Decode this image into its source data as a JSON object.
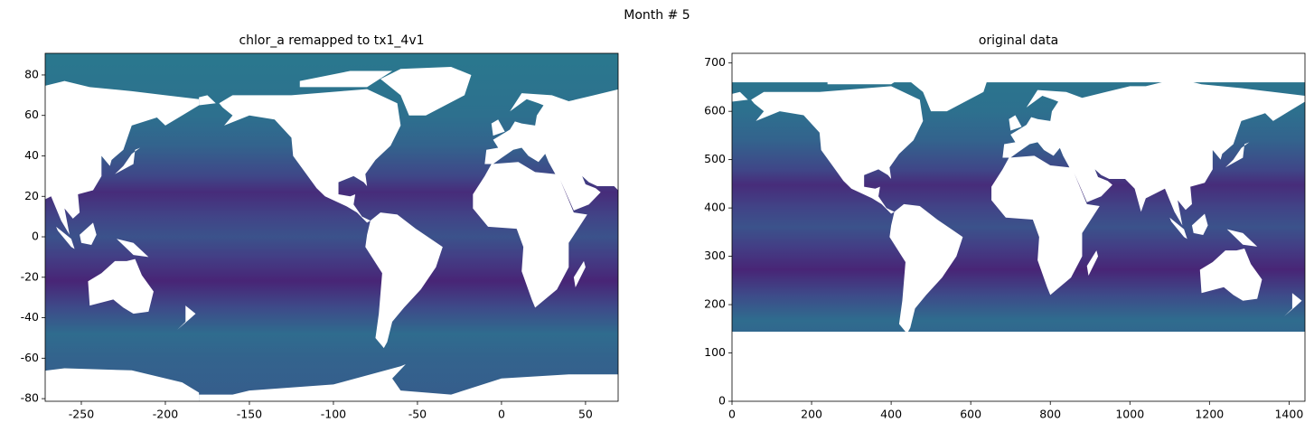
{
  "title": "Month # 5",
  "chart_data": [
    {
      "type": "heatmap",
      "title": "chlor_a remapped to tx1_4v1",
      "xlim": [
        -271.5,
        69.4
      ],
      "ylim": [
        -81.3,
        90.7
      ],
      "xticks": [
        -250,
        -200,
        -150,
        -100,
        -50,
        0,
        50
      ],
      "yticks": [
        -80,
        -60,
        -40,
        -20,
        0,
        20,
        40,
        60,
        80
      ]
    },
    {
      "type": "heatmap",
      "title": "original data",
      "xlim": [
        0,
        1440
      ],
      "ylim": [
        0,
        720
      ],
      "xticks": [
        0,
        200,
        400,
        600,
        800,
        1000,
        1200,
        1400
      ],
      "yticks": [
        0,
        100,
        200,
        300,
        400,
        500,
        600,
        700
      ]
    }
  ]
}
